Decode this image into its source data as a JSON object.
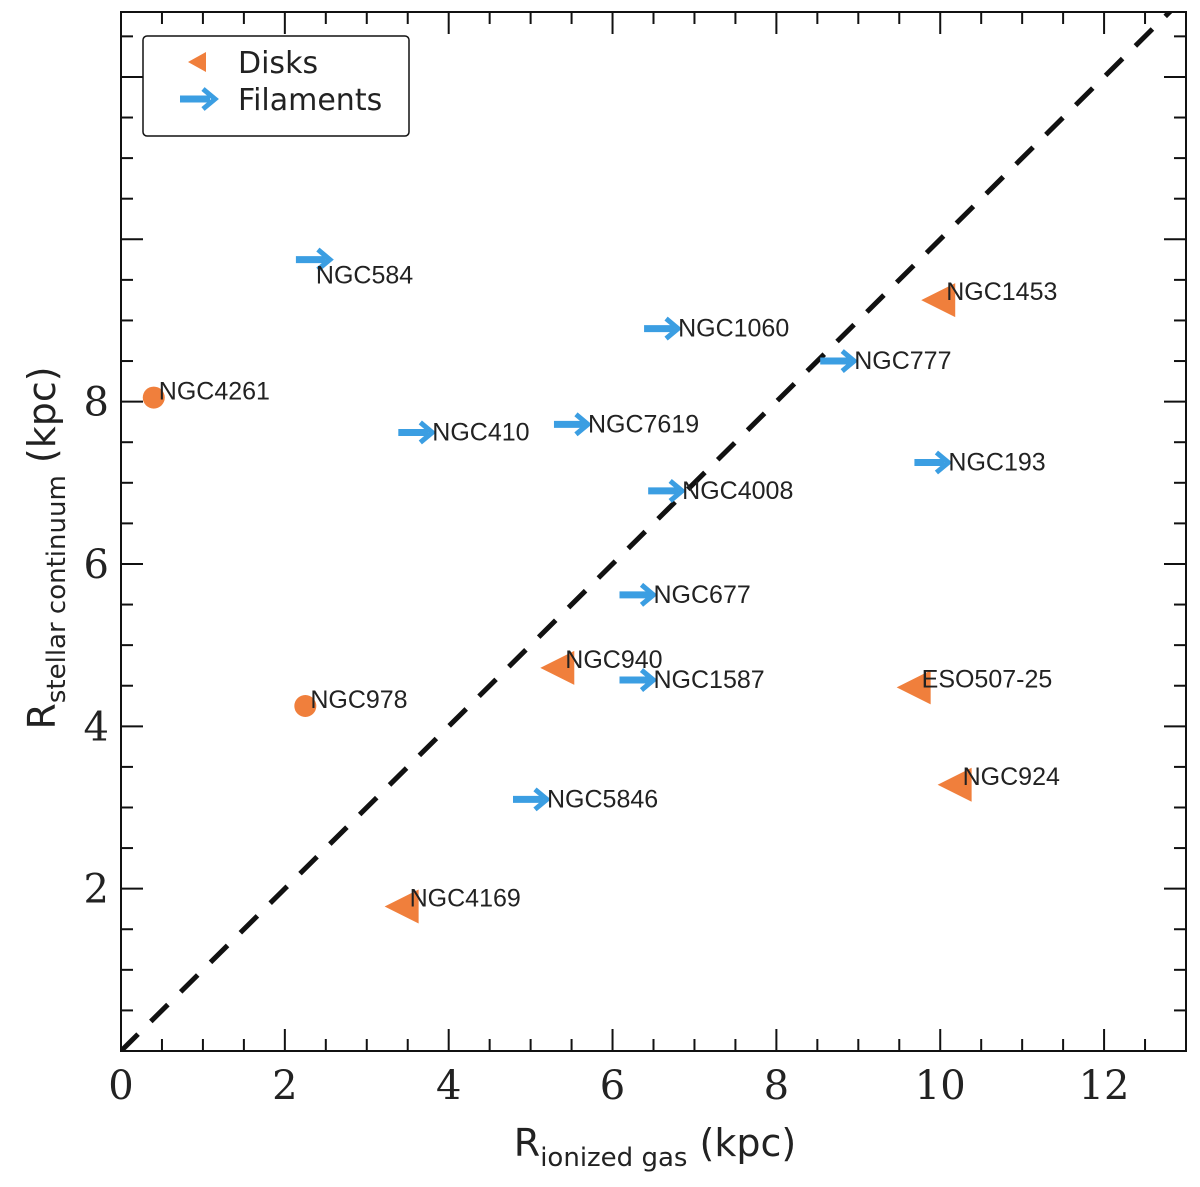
{
  "chart_data": {
    "type": "scatter",
    "xlabel": {
      "main": "R",
      "sub": "ionized gas",
      "unit": "(kpc)"
    },
    "ylabel": {
      "main": "R",
      "sub": "stellar continuum",
      "unit": "(kpc)"
    },
    "xlim": [
      0,
      13
    ],
    "ylim": [
      0,
      12.8
    ],
    "x_ticks": [
      0,
      2,
      4,
      6,
      8,
      10,
      12
    ],
    "y_ticks": [
      2,
      4,
      6,
      8
    ],
    "reference_line": {
      "style": "dashed",
      "slope": 1,
      "intercept": 0
    },
    "colors": {
      "disks": "#f07f3c",
      "filaments": "#3b9ee2",
      "reference": "#111111"
    },
    "legend": {
      "position": "top-left",
      "entries": [
        {
          "label": "Disks",
          "marker": "triangle-left"
        },
        {
          "label": "Filaments",
          "marker": "arrow-right"
        }
      ]
    },
    "series": [
      {
        "name": "Disks",
        "marker": "triangle-left",
        "points": [
          {
            "name": "NGC1453",
            "x": 10.0,
            "y": 9.25
          },
          {
            "name": "NGC940",
            "x": 5.35,
            "y": 4.72
          },
          {
            "name": "ESO507-25",
            "x": 9.7,
            "y": 4.48
          },
          {
            "name": "NGC924",
            "x": 10.2,
            "y": 3.28
          },
          {
            "name": "NGC4169",
            "x": 3.45,
            "y": 1.78
          }
        ]
      },
      {
        "name": "Filaments",
        "marker": "arrow-right",
        "points": [
          {
            "name": "NGC584",
            "x": 2.55,
            "y": 9.75
          },
          {
            "name": "NGC1060",
            "x": 6.8,
            "y": 8.9
          },
          {
            "name": "NGC777",
            "x": 8.95,
            "y": 8.5
          },
          {
            "name": "NGC410",
            "x": 3.8,
            "y": 7.62
          },
          {
            "name": "NGC7619",
            "x": 5.7,
            "y": 7.72
          },
          {
            "name": "NGC193",
            "x": 10.1,
            "y": 7.25
          },
          {
            "name": "NGC4008",
            "x": 6.85,
            "y": 6.9
          },
          {
            "name": "NGC677",
            "x": 6.5,
            "y": 5.62
          },
          {
            "name": "NGC1587",
            "x": 6.5,
            "y": 4.57
          },
          {
            "name": "NGC5846",
            "x": 5.2,
            "y": 3.1
          }
        ]
      },
      {
        "name": "",
        "marker": "circle",
        "points": [
          {
            "name": "NGC4261",
            "x": 0.4,
            "y": 8.05
          },
          {
            "name": "NGC978",
            "x": 2.25,
            "y": 4.25
          }
        ]
      }
    ]
  }
}
